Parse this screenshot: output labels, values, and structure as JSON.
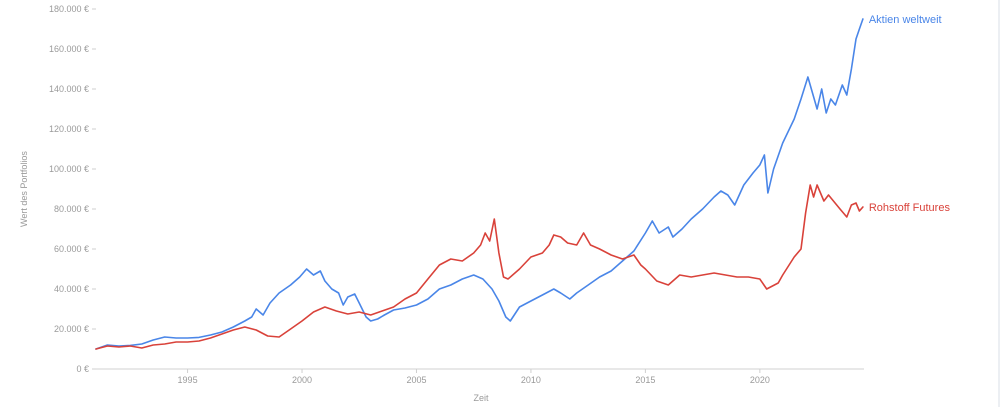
{
  "chart_data": {
    "type": "line",
    "title": "",
    "xlabel": "Zeit",
    "ylabel": "Wert des Portfolios",
    "xlim": [
      1991.0,
      2024.55
    ],
    "ylim": [
      0,
      180000
    ],
    "x_ticks": [
      1995,
      2000,
      2005,
      2010,
      2015,
      2020
    ],
    "x_tick_labels": [
      "1995",
      "2000",
      "2005",
      "2010",
      "2015",
      "2020"
    ],
    "y_ticks": [
      0,
      20000,
      40000,
      60000,
      80000,
      100000,
      120000,
      140000,
      160000,
      180000
    ],
    "y_tick_labels": [
      "0 €",
      "20.000 €",
      "40.000 €",
      "60.000 €",
      "80.000 €",
      "100.000 €",
      "120.000 €",
      "140.000 €",
      "160.000 €",
      "180.000 €"
    ],
    "grid": false,
    "legend": "end-of-line labels",
    "series": [
      {
        "name": "Aktien weltweit",
        "color": "#4a86e8",
        "points": [
          [
            1991.0,
            10000
          ],
          [
            1991.5,
            12000
          ],
          [
            1992.0,
            11500
          ],
          [
            1992.5,
            11800
          ],
          [
            1993.0,
            12500
          ],
          [
            1993.5,
            14500
          ],
          [
            1994.0,
            16000
          ],
          [
            1994.5,
            15500
          ],
          [
            1995.0,
            15500
          ],
          [
            1995.5,
            15800
          ],
          [
            1996.0,
            17000
          ],
          [
            1996.5,
            18500
          ],
          [
            1997.0,
            21000
          ],
          [
            1997.5,
            24000
          ],
          [
            1997.8,
            26000
          ],
          [
            1998.0,
            30000
          ],
          [
            1998.3,
            27000
          ],
          [
            1998.6,
            33000
          ],
          [
            1999.0,
            38000
          ],
          [
            1999.5,
            42000
          ],
          [
            1999.9,
            46000
          ],
          [
            2000.2,
            50000
          ],
          [
            2000.5,
            47000
          ],
          [
            2000.8,
            49000
          ],
          [
            2001.0,
            44000
          ],
          [
            2001.3,
            40000
          ],
          [
            2001.6,
            38000
          ],
          [
            2001.8,
            32000
          ],
          [
            2002.0,
            36000
          ],
          [
            2002.3,
            37500
          ],
          [
            2002.5,
            33000
          ],
          [
            2002.8,
            26000
          ],
          [
            2003.0,
            24000
          ],
          [
            2003.3,
            25000
          ],
          [
            2003.6,
            27000
          ],
          [
            2004.0,
            29500
          ],
          [
            2004.5,
            30500
          ],
          [
            2005.0,
            32000
          ],
          [
            2005.5,
            35000
          ],
          [
            2006.0,
            40000
          ],
          [
            2006.5,
            42000
          ],
          [
            2007.0,
            45000
          ],
          [
            2007.5,
            47000
          ],
          [
            2007.9,
            45000
          ],
          [
            2008.3,
            40000
          ],
          [
            2008.6,
            34000
          ],
          [
            2008.9,
            26000
          ],
          [
            2009.1,
            24000
          ],
          [
            2009.5,
            31000
          ],
          [
            2010.0,
            34000
          ],
          [
            2010.5,
            37000
          ],
          [
            2011.0,
            40000
          ],
          [
            2011.3,
            38000
          ],
          [
            2011.7,
            35000
          ],
          [
            2012.0,
            38000
          ],
          [
            2012.5,
            42000
          ],
          [
            2013.0,
            46000
          ],
          [
            2013.5,
            49000
          ],
          [
            2014.0,
            54000
          ],
          [
            2014.5,
            59000
          ],
          [
            2015.0,
            68000
          ],
          [
            2015.3,
            74000
          ],
          [
            2015.6,
            68000
          ],
          [
            2016.0,
            71000
          ],
          [
            2016.2,
            66000
          ],
          [
            2016.6,
            70000
          ],
          [
            2017.0,
            75000
          ],
          [
            2017.5,
            80000
          ],
          [
            2018.0,
            86000
          ],
          [
            2018.3,
            89000
          ],
          [
            2018.6,
            87000
          ],
          [
            2018.9,
            82000
          ],
          [
            2019.3,
            92000
          ],
          [
            2019.7,
            98000
          ],
          [
            2020.0,
            102000
          ],
          [
            2020.2,
            107000
          ],
          [
            2020.35,
            88000
          ],
          [
            2020.6,
            100000
          ],
          [
            2021.0,
            113000
          ],
          [
            2021.5,
            125000
          ],
          [
            2021.8,
            135000
          ],
          [
            2022.1,
            146000
          ],
          [
            2022.3,
            138000
          ],
          [
            2022.5,
            130000
          ],
          [
            2022.7,
            140000
          ],
          [
            2022.9,
            128000
          ],
          [
            2023.1,
            135000
          ],
          [
            2023.3,
            132000
          ],
          [
            2023.6,
            142000
          ],
          [
            2023.8,
            137000
          ],
          [
            2024.0,
            150000
          ],
          [
            2024.2,
            165000
          ],
          [
            2024.35,
            170000
          ],
          [
            2024.5,
            175000
          ]
        ]
      },
      {
        "name": "Rohstoff Futures",
        "color": "#d9423a",
        "points": [
          [
            1991.0,
            10000
          ],
          [
            1991.5,
            11500
          ],
          [
            1992.0,
            11000
          ],
          [
            1992.5,
            11500
          ],
          [
            1993.0,
            10500
          ],
          [
            1993.5,
            12000
          ],
          [
            1994.0,
            12500
          ],
          [
            1994.5,
            13500
          ],
          [
            1995.0,
            13500
          ],
          [
            1995.5,
            14000
          ],
          [
            1996.0,
            15500
          ],
          [
            1996.5,
            17500
          ],
          [
            1997.0,
            19500
          ],
          [
            1997.5,
            21000
          ],
          [
            1998.0,
            19500
          ],
          [
            1998.5,
            16500
          ],
          [
            1999.0,
            16000
          ],
          [
            1999.5,
            20000
          ],
          [
            2000.0,
            24000
          ],
          [
            2000.5,
            28500
          ],
          [
            2001.0,
            31000
          ],
          [
            2001.5,
            29000
          ],
          [
            2002.0,
            27500
          ],
          [
            2002.5,
            28500
          ],
          [
            2003.0,
            27000
          ],
          [
            2003.5,
            29000
          ],
          [
            2004.0,
            31000
          ],
          [
            2004.5,
            35000
          ],
          [
            2005.0,
            38000
          ],
          [
            2005.5,
            45000
          ],
          [
            2006.0,
            52000
          ],
          [
            2006.5,
            55000
          ],
          [
            2007.0,
            54000
          ],
          [
            2007.5,
            58000
          ],
          [
            2007.8,
            62000
          ],
          [
            2008.0,
            68000
          ],
          [
            2008.2,
            64000
          ],
          [
            2008.4,
            75000
          ],
          [
            2008.6,
            58000
          ],
          [
            2008.8,
            46000
          ],
          [
            2009.0,
            45000
          ],
          [
            2009.5,
            50000
          ],
          [
            2010.0,
            56000
          ],
          [
            2010.5,
            58000
          ],
          [
            2010.8,
            62000
          ],
          [
            2011.0,
            67000
          ],
          [
            2011.3,
            66000
          ],
          [
            2011.6,
            63000
          ],
          [
            2012.0,
            62000
          ],
          [
            2012.3,
            68000
          ],
          [
            2012.6,
            62000
          ],
          [
            2013.0,
            60000
          ],
          [
            2013.5,
            57000
          ],
          [
            2014.0,
            55000
          ],
          [
            2014.5,
            57000
          ],
          [
            2014.8,
            52000
          ],
          [
            2015.0,
            50000
          ],
          [
            2015.5,
            44000
          ],
          [
            2016.0,
            42000
          ],
          [
            2016.5,
            47000
          ],
          [
            2017.0,
            46000
          ],
          [
            2017.5,
            47000
          ],
          [
            2018.0,
            48000
          ],
          [
            2018.5,
            47000
          ],
          [
            2019.0,
            46000
          ],
          [
            2019.5,
            46000
          ],
          [
            2020.0,
            45000
          ],
          [
            2020.3,
            40000
          ],
          [
            2020.8,
            43000
          ],
          [
            2021.0,
            47000
          ],
          [
            2021.5,
            56000
          ],
          [
            2021.8,
            60000
          ],
          [
            2022.0,
            78000
          ],
          [
            2022.2,
            92000
          ],
          [
            2022.35,
            86000
          ],
          [
            2022.5,
            92000
          ],
          [
            2022.8,
            84000
          ],
          [
            2023.0,
            87000
          ],
          [
            2023.5,
            80000
          ],
          [
            2023.8,
            76000
          ],
          [
            2024.0,
            82000
          ],
          [
            2024.2,
            83000
          ],
          [
            2024.35,
            79000
          ],
          [
            2024.5,
            81000
          ]
        ]
      }
    ]
  }
}
